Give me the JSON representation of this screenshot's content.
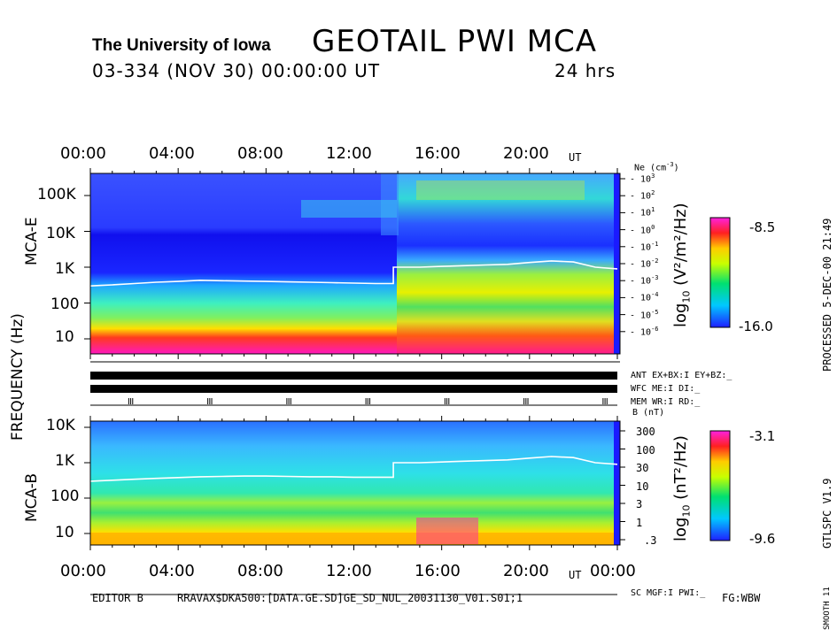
{
  "header": {
    "university": "The University of Iowa",
    "title": "GEOTAIL  PWI  MCA",
    "date_line": "03-334  (NOV 30)  00:00:00  UT",
    "duration": "24 hrs"
  },
  "side_labels": {
    "processed": "PROCESSED   5-DEC-00   21:49",
    "version": "GTLSPC   V1.9",
    "smooth": "SMOOTH 11",
    "frequency_axis": "FREQUENCY   (Hz)",
    "mca_e": "MCA-E",
    "mca_b": "MCA-B"
  },
  "mode_panel": {
    "ant": "ANT EX+BX:I EY+BZ:_",
    "wfc": "WFC ME:I     DI:_",
    "mem": "MEM WR:I     RD:_",
    "sc": "SC MGF:I    PWI:_"
  },
  "footer": {
    "editor": "EDITOR B",
    "file": "RRAVAX$DKA500:[DATA.GE.SD]GE_SD_NUL_20031130_V01.S01;1",
    "fg": "FG:WBW"
  },
  "chart_data": [
    {
      "type": "heatmap",
      "name": "MCA-E",
      "x_ticks": [
        "00:00",
        "04:00",
        "08:00",
        "12:00",
        "16:00",
        "20:00",
        "UT"
      ],
      "y_ticks": [
        "100K",
        "10K",
        "1K",
        "100",
        "10"
      ],
      "right_axis_label": "Ne (cm",
      "right_axis_label_exp": "-3",
      "right_axis_label_close": ")",
      "right_ticks": [
        "3",
        "2",
        "1",
        "0",
        "-1",
        "-2",
        "-3",
        "-4",
        "-5",
        "-6"
      ],
      "colorbar_label": "log",
      "colorbar_label_sub": "10",
      "colorbar_unit": "(V²/m²/Hz)",
      "colorbar_max": "-8.5",
      "colorbar_min": "-16.0",
      "overlay_line_hz": [
        [
          0,
          300
        ],
        [
          0.5,
          310
        ],
        [
          1,
          320
        ],
        [
          2,
          350
        ],
        [
          3,
          380
        ],
        [
          4,
          400
        ],
        [
          5,
          430
        ],
        [
          6,
          420
        ],
        [
          7,
          410
        ],
        [
          8,
          400
        ],
        [
          9,
          390
        ],
        [
          10,
          380
        ],
        [
          11,
          370
        ],
        [
          12,
          360
        ],
        [
          13,
          350
        ],
        [
          13.8,
          350
        ],
        [
          13.8,
          1000
        ],
        [
          15,
          1000
        ],
        [
          16,
          1050
        ],
        [
          17,
          1100
        ],
        [
          18,
          1150
        ],
        [
          19,
          1200
        ],
        [
          20,
          1350
        ],
        [
          21,
          1500
        ],
        [
          22,
          1400
        ],
        [
          23,
          1000
        ],
        [
          24,
          900
        ]
      ]
    },
    {
      "type": "heatmap",
      "name": "MCA-B",
      "x_ticks": [
        "00:00",
        "04:00",
        "08:00",
        "12:00",
        "16:00",
        "20:00",
        "UT",
        "00:00"
      ],
      "y_ticks": [
        "10K",
        "1K",
        "100",
        "10"
      ],
      "right_axis_label": "B (nT)",
      "right_ticks": [
        "300",
        "100",
        "30",
        "10",
        "3",
        "1",
        ".3"
      ],
      "colorbar_label": "log",
      "colorbar_label_sub": "10",
      "colorbar_unit": "(nT²/Hz)",
      "colorbar_max": "-3.1",
      "colorbar_min": "-9.6",
      "overlay_line_hz": [
        [
          0,
          300
        ],
        [
          1,
          320
        ],
        [
          2,
          340
        ],
        [
          3,
          360
        ],
        [
          4,
          380
        ],
        [
          5,
          400
        ],
        [
          6,
          410
        ],
        [
          7,
          420
        ],
        [
          8,
          420
        ],
        [
          9,
          410
        ],
        [
          10,
          400
        ],
        [
          11,
          400
        ],
        [
          12,
          390
        ],
        [
          13,
          390
        ],
        [
          13.8,
          390
        ],
        [
          13.8,
          1000
        ],
        [
          15,
          1000
        ],
        [
          16,
          1050
        ],
        [
          17,
          1100
        ],
        [
          18,
          1150
        ],
        [
          19,
          1200
        ],
        [
          20,
          1350
        ],
        [
          21,
          1500
        ],
        [
          22,
          1400
        ],
        [
          23,
          1000
        ],
        [
          24,
          900
        ]
      ]
    }
  ]
}
